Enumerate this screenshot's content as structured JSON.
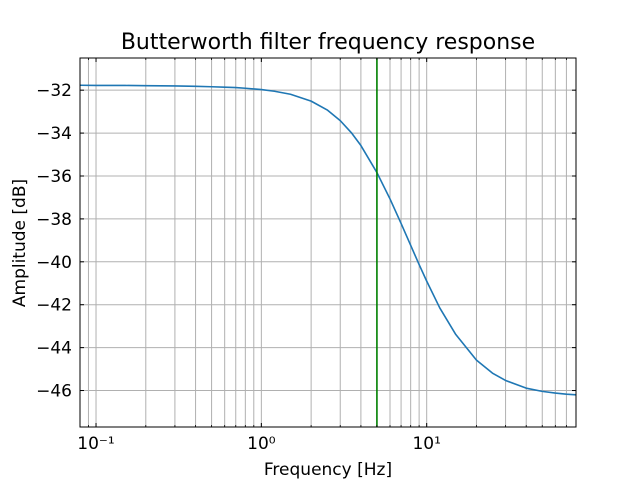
{
  "chart_data": {
    "type": "line",
    "title": "Butterworth filter frequency response",
    "xlabel": "Frequency [Hz]",
    "ylabel": "Amplitude [dB]",
    "x_scale": "log",
    "xlim": [
      0.08,
      80
    ],
    "ylim": [
      -47.7,
      -30.5
    ],
    "grid": true,
    "x_ticks": [
      {
        "value": 0.1,
        "label": "10⁻¹"
      },
      {
        "value": 1,
        "label": "10⁰"
      },
      {
        "value": 10,
        "label": "10¹"
      }
    ],
    "y_ticks": [
      {
        "value": -32,
        "label": "−32"
      },
      {
        "value": -34,
        "label": "−34"
      },
      {
        "value": -36,
        "label": "−36"
      },
      {
        "value": -38,
        "label": "−38"
      },
      {
        "value": -40,
        "label": "−40"
      },
      {
        "value": -42,
        "label": "−42"
      },
      {
        "value": -44,
        "label": "−44"
      },
      {
        "value": -46,
        "label": "−46"
      }
    ],
    "series": [
      {
        "color": "#1f77b4",
        "x": [
          0.08,
          0.1,
          0.15,
          0.2,
          0.3,
          0.4,
          0.5,
          0.6,
          0.7,
          0.8,
          1.0,
          1.2,
          1.5,
          2.0,
          2.5,
          3.0,
          3.5,
          4.0,
          5.0,
          6.0,
          7.0,
          8.0,
          9.0,
          10.0,
          12.0,
          15.0,
          20.0,
          25.0,
          30.0,
          40.0,
          50.0,
          60.0,
          70.0,
          80.0
        ],
        "y": [
          -31.77,
          -31.78,
          -31.78,
          -31.79,
          -31.8,
          -31.82,
          -31.84,
          -31.86,
          -31.88,
          -31.91,
          -31.97,
          -32.05,
          -32.19,
          -32.51,
          -32.92,
          -33.42,
          -33.98,
          -34.58,
          -35.84,
          -37.07,
          -38.21,
          -39.23,
          -40.13,
          -40.9,
          -42.15,
          -43.39,
          -44.58,
          -45.19,
          -45.53,
          -45.89,
          -46.04,
          -46.12,
          -46.17,
          -46.2
        ]
      }
    ],
    "vlines": [
      {
        "x": 5,
        "color": "#008000"
      }
    ]
  }
}
